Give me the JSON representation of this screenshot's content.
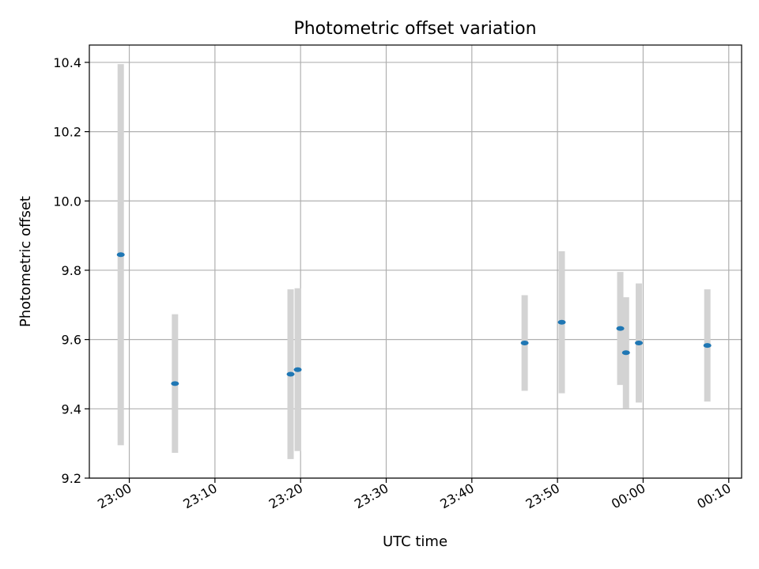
{
  "chart_data": {
    "type": "scatter",
    "title": "Photometric offset variation",
    "xlabel": "UTC time",
    "ylabel": "Photometric offset",
    "grid": true,
    "ylim": [
      9.2,
      10.45
    ],
    "xlim": [
      "22:55:20",
      "00:11:30"
    ],
    "x_ticks": [
      "23:00",
      "23:10",
      "23:20",
      "23:30",
      "23:40",
      "23:50",
      "00:00",
      "00:10"
    ],
    "y_ticks": [
      "9.2",
      "9.4",
      "9.6",
      "9.8",
      "10.0",
      "10.2",
      "10.4"
    ],
    "colors": {
      "point": "#1f77b4",
      "errorbar": "#d3d3d3",
      "grid": "#b0b0b0"
    },
    "points": [
      {
        "time": "22:59:00",
        "y": 9.845,
        "yerr": 0.55
      },
      {
        "time": "23:05:20",
        "y": 9.473,
        "yerr": 0.2
      },
      {
        "time": "23:18:50",
        "y": 9.5,
        "yerr": 0.245
      },
      {
        "time": "23:19:40",
        "y": 9.513,
        "yerr": 0.235
      },
      {
        "time": "23:46:10",
        "y": 9.59,
        "yerr": 0.138
      },
      {
        "time": "23:50:30",
        "y": 9.65,
        "yerr": 0.205
      },
      {
        "time": "23:57:20",
        "y": 9.632,
        "yerr": 0.163
      },
      {
        "time": "23:58:00",
        "y": 9.562,
        "yerr": 0.16
      },
      {
        "time": "23:59:30",
        "y": 9.59,
        "yerr": 0.172
      },
      {
        "time": "00:07:30",
        "y": 9.583,
        "yerr": 0.162
      }
    ]
  }
}
